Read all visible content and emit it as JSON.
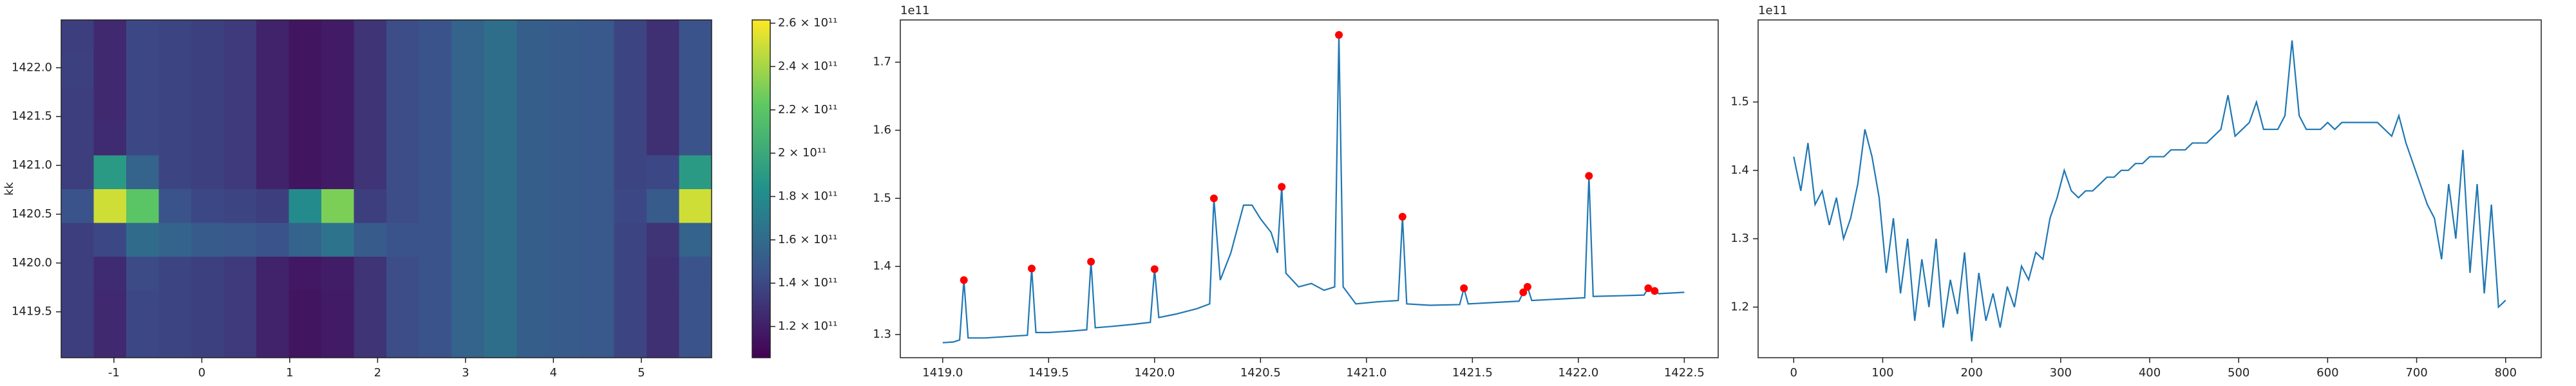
{
  "chart_data": [
    {
      "type": "heatmap",
      "ylabel": "kk",
      "x_edges": [
        -1.6,
        -1.23,
        -0.86,
        -0.49,
        -0.12,
        0.25,
        0.62,
        0.99,
        1.36,
        1.73,
        2.1,
        2.47,
        2.84,
        3.21,
        3.58,
        3.95,
        4.32,
        4.69,
        5.06,
        5.43,
        5.8
      ],
      "y_edges": [
        1419.03,
        1419.376,
        1419.722,
        1420.068,
        1420.414,
        1420.76,
        1421.106,
        1421.452,
        1421.798,
        1422.144,
        1422.49
      ],
      "z": [
        [
          135000000000.0,
          125000000000.0,
          140000000000.0,
          138000000000.0,
          136000000000.0,
          133000000000.0,
          122000000000.0,
          115000000000.0,
          118000000000.0,
          130000000000.0,
          142000000000.0,
          145000000000.0,
          155000000000.0,
          162000000000.0,
          152000000000.0,
          150000000000.0,
          148000000000.0,
          138000000000.0,
          128000000000.0,
          145000000000.0
        ],
        [
          135000000000.0,
          125000000000.0,
          140000000000.0,
          138000000000.0,
          136000000000.0,
          133000000000.0,
          122000000000.0,
          115000000000.0,
          118000000000.0,
          130000000000.0,
          142000000000.0,
          145000000000.0,
          155000000000.0,
          162000000000.0,
          152000000000.0,
          150000000000.0,
          148000000000.0,
          138000000000.0,
          128000000000.0,
          145000000000.0
        ],
        [
          135000000000.0,
          126000000000.0,
          141000000000.0,
          138000000000.0,
          136000000000.0,
          133000000000.0,
          122000000000.0,
          116000000000.0,
          119000000000.0,
          130000000000.0,
          142000000000.0,
          145000000000.0,
          155000000000.0,
          162000000000.0,
          152000000000.0,
          150000000000.0,
          148000000000.0,
          138000000000.0,
          128000000000.0,
          146000000000.0
        ],
        [
          135000000000.0,
          140000000000.0,
          160000000000.0,
          155000000000.0,
          150000000000.0,
          148000000000.0,
          145000000000.0,
          155000000000.0,
          165000000000.0,
          150000000000.0,
          145000000000.0,
          145000000000.0,
          155000000000.0,
          162000000000.0,
          152000000000.0,
          150000000000.0,
          148000000000.0,
          138000000000.0,
          130000000000.0,
          155000000000.0
        ],
        [
          145000000000.0,
          250000000000.0,
          220000000000.0,
          145000000000.0,
          140000000000.0,
          138000000000.0,
          135000000000.0,
          180000000000.0,
          230000000000.0,
          135000000000.0,
          142000000000.0,
          145000000000.0,
          155000000000.0,
          162000000000.0,
          152000000000.0,
          150000000000.0,
          148000000000.0,
          140000000000.0,
          150000000000.0,
          250000000000.0
        ],
        [
          135000000000.0,
          190000000000.0,
          155000000000.0,
          138000000000.0,
          136000000000.0,
          133000000000.0,
          122000000000.0,
          115000000000.0,
          118000000000.0,
          130000000000.0,
          142000000000.0,
          145000000000.0,
          155000000000.0,
          162000000000.0,
          152000000000.0,
          150000000000.0,
          148000000000.0,
          138000000000.0,
          140000000000.0,
          190000000000.0
        ],
        [
          135000000000.0,
          126000000000.0,
          140000000000.0,
          138000000000.0,
          136000000000.0,
          133000000000.0,
          122000000000.0,
          115000000000.0,
          118000000000.0,
          130000000000.0,
          142000000000.0,
          145000000000.0,
          155000000000.0,
          162000000000.0,
          152000000000.0,
          150000000000.0,
          148000000000.0,
          138000000000.0,
          128000000000.0,
          145000000000.0
        ],
        [
          135000000000.0,
          125000000000.0,
          140000000000.0,
          138000000000.0,
          136000000000.0,
          133000000000.0,
          122000000000.0,
          115000000000.0,
          118000000000.0,
          130000000000.0,
          142000000000.0,
          145000000000.0,
          155000000000.0,
          162000000000.0,
          152000000000.0,
          150000000000.0,
          148000000000.0,
          138000000000.0,
          128000000000.0,
          145000000000.0
        ],
        [
          136000000000.0,
          125000000000.0,
          140000000000.0,
          138000000000.0,
          136000000000.0,
          133000000000.0,
          122000000000.0,
          115000000000.0,
          118000000000.0,
          130000000000.0,
          142000000000.0,
          145000000000.0,
          155000000000.0,
          162000000000.0,
          152000000000.0,
          150000000000.0,
          148000000000.0,
          138000000000.0,
          128000000000.0,
          145000000000.0
        ],
        [
          135000000000.0,
          125000000000.0,
          140000000000.0,
          138000000000.0,
          136000000000.0,
          133000000000.0,
          122000000000.0,
          115000000000.0,
          118000000000.0,
          130000000000.0,
          142000000000.0,
          145000000000.0,
          155000000000.0,
          162000000000.0,
          152000000000.0,
          150000000000.0,
          148000000000.0,
          138000000000.0,
          128000000000.0,
          145000000000.0
        ]
      ],
      "xlim": [
        -1.6,
        5.8
      ],
      "ylim": [
        1419.03,
        1422.49
      ],
      "xticks": [
        -1,
        0,
        1,
        2,
        3,
        4,
        5
      ],
      "yticks": [
        1419.5,
        {
          "value": 1420,
          "label": "1420.0"
        },
        1420.5,
        {
          "value": 1421,
          "label": "1421.0"
        },
        1421.5,
        {
          "value": 1422,
          "label": "1422.0"
        }
      ],
      "colormap": "viridis",
      "clim": [
        105600000000.0,
        261500000000.0
      ],
      "cticks": [
        {
          "value": 120000000000.0,
          "label": "1.2 × 10¹¹"
        },
        {
          "value": 140000000000.0,
          "label": "1.4 × 10¹¹"
        },
        {
          "value": 160000000000.0,
          "label": "1.6 × 10¹¹"
        },
        {
          "value": 180000000000.0,
          "label": "1.8 × 10¹¹"
        },
        {
          "value": 200000000000.0,
          "label": "2 × 10¹¹"
        },
        {
          "value": 220000000000.0,
          "label": "2.2 × 10¹¹"
        },
        {
          "value": 240000000000.0,
          "label": "2.4 × 10¹¹"
        },
        {
          "value": 260000000000.0,
          "label": "2.6 × 10¹¹"
        }
      ]
    },
    {
      "type": "line",
      "offset_label": "1e11",
      "series": [
        {
          "type": "line",
          "color": "#1f77b4",
          "x": [
            1419.0,
            1419.05,
            1419.08,
            1419.1,
            1419.12,
            1419.2,
            1419.3,
            1419.4,
            1419.42,
            1419.44,
            1419.5,
            1419.6,
            1419.68,
            1419.7,
            1419.72,
            1419.8,
            1419.9,
            1419.98,
            1420.0,
            1420.02,
            1420.1,
            1420.2,
            1420.26,
            1420.28,
            1420.31,
            1420.36,
            1420.42,
            1420.46,
            1420.5,
            1420.55,
            1420.58,
            1420.6,
            1420.62,
            1420.68,
            1420.74,
            1420.8,
            1420.85,
            1420.87,
            1420.89,
            1420.95,
            1421.05,
            1421.15,
            1421.17,
            1421.19,
            1421.3,
            1421.44,
            1421.46,
            1421.48,
            1421.6,
            1421.72,
            1421.74,
            1421.76,
            1421.78,
            1421.9,
            1422.03,
            1422.05,
            1422.07,
            1422.2,
            1422.31,
            1422.33,
            1422.36,
            1422.38,
            1422.5
          ],
          "values": [
            1.288,
            1.289,
            1.292,
            1.38,
            1.295,
            1.295,
            1.297,
            1.299,
            1.397,
            1.303,
            1.303,
            1.305,
            1.307,
            1.407,
            1.31,
            1.312,
            1.315,
            1.318,
            1.396,
            1.325,
            1.33,
            1.338,
            1.345,
            1.5,
            1.38,
            1.42,
            1.49,
            1.49,
            1.47,
            1.45,
            1.42,
            1.517,
            1.39,
            1.37,
            1.375,
            1.365,
            1.37,
            1.74,
            1.37,
            1.345,
            1.348,
            1.35,
            1.473,
            1.345,
            1.343,
            1.344,
            1.368,
            1.345,
            1.347,
            1.349,
            1.362,
            1.37,
            1.35,
            1.352,
            1.354,
            1.533,
            1.356,
            1.357,
            1.358,
            1.368,
            1.364,
            1.36,
            1.362
          ]
        },
        {
          "type": "scatter",
          "color": "#ff0000",
          "x": [
            1419.1,
            1419.42,
            1419.7,
            1420.0,
            1420.28,
            1420.6,
            1420.87,
            1421.17,
            1421.46,
            1421.74,
            1421.76,
            1422.05,
            1422.33,
            1422.36
          ],
          "values": [
            1.38,
            1.397,
            1.407,
            1.396,
            1.5,
            1.517,
            1.74,
            1.473,
            1.368,
            1.362,
            1.37,
            1.533,
            1.368,
            1.364
          ]
        }
      ],
      "xlim": [
        1418.8,
        1422.66
      ],
      "ylim": [
        1.266,
        1.762
      ],
      "xticks": [
        {
          "value": 1419,
          "label": "1419.0"
        },
        1419.5,
        {
          "value": 1420,
          "label": "1420.0"
        },
        1420.5,
        {
          "value": 1421,
          "label": "1421.0"
        },
        1421.5,
        {
          "value": 1422,
          "label": "1422.0"
        },
        1422.5
      ],
      "yticks": [
        1.3,
        1.4,
        1.5,
        1.6,
        1.7
      ]
    },
    {
      "type": "line",
      "offset_label": "1e11",
      "series": [
        {
          "type": "line",
          "color": "#1f77b4",
          "x": [
            0,
            8,
            16,
            24,
            32,
            40,
            48,
            56,
            64,
            72,
            80,
            88,
            96,
            104,
            112,
            120,
            128,
            136,
            144,
            152,
            160,
            168,
            176,
            184,
            192,
            200,
            208,
            216,
            224,
            232,
            240,
            248,
            256,
            264,
            272,
            280,
            288,
            296,
            304,
            312,
            320,
            328,
            336,
            344,
            352,
            360,
            368,
            376,
            384,
            392,
            400,
            408,
            416,
            424,
            432,
            440,
            448,
            456,
            464,
            472,
            480,
            488,
            496,
            504,
            512,
            520,
            528,
            536,
            544,
            552,
            560,
            568,
            576,
            584,
            592,
            600,
            608,
            616,
            624,
            632,
            640,
            648,
            656,
            664,
            672,
            680,
            688,
            696,
            704,
            712,
            720,
            728,
            736,
            744,
            752,
            760,
            768,
            776,
            784,
            792,
            800
          ],
          "values": [
            1.42,
            1.37,
            1.44,
            1.35,
            1.37,
            1.32,
            1.36,
            1.3,
            1.33,
            1.38,
            1.46,
            1.42,
            1.36,
            1.25,
            1.33,
            1.22,
            1.3,
            1.18,
            1.27,
            1.2,
            1.3,
            1.17,
            1.24,
            1.19,
            1.28,
            1.15,
            1.25,
            1.18,
            1.22,
            1.17,
            1.23,
            1.2,
            1.26,
            1.24,
            1.28,
            1.27,
            1.33,
            1.36,
            1.4,
            1.37,
            1.36,
            1.37,
            1.37,
            1.38,
            1.39,
            1.39,
            1.4,
            1.4,
            1.41,
            1.41,
            1.42,
            1.42,
            1.42,
            1.43,
            1.43,
            1.43,
            1.44,
            1.44,
            1.44,
            1.45,
            1.46,
            1.51,
            1.45,
            1.46,
            1.47,
            1.5,
            1.46,
            1.46,
            1.46,
            1.48,
            1.59,
            1.48,
            1.46,
            1.46,
            1.46,
            1.47,
            1.46,
            1.47,
            1.47,
            1.47,
            1.47,
            1.47,
            1.47,
            1.46,
            1.45,
            1.48,
            1.44,
            1.41,
            1.38,
            1.35,
            1.33,
            1.27,
            1.38,
            1.3,
            1.43,
            1.25,
            1.38,
            1.22,
            1.35,
            1.2,
            1.21
          ]
        }
      ],
      "xlim": [
        -40,
        840
      ],
      "ylim": [
        1.126,
        1.62
      ],
      "xticks": [
        0,
        100,
        200,
        300,
        400,
        500,
        600,
        700,
        800
      ],
      "yticks": [
        1.2,
        1.3,
        1.4,
        1.5
      ]
    }
  ]
}
